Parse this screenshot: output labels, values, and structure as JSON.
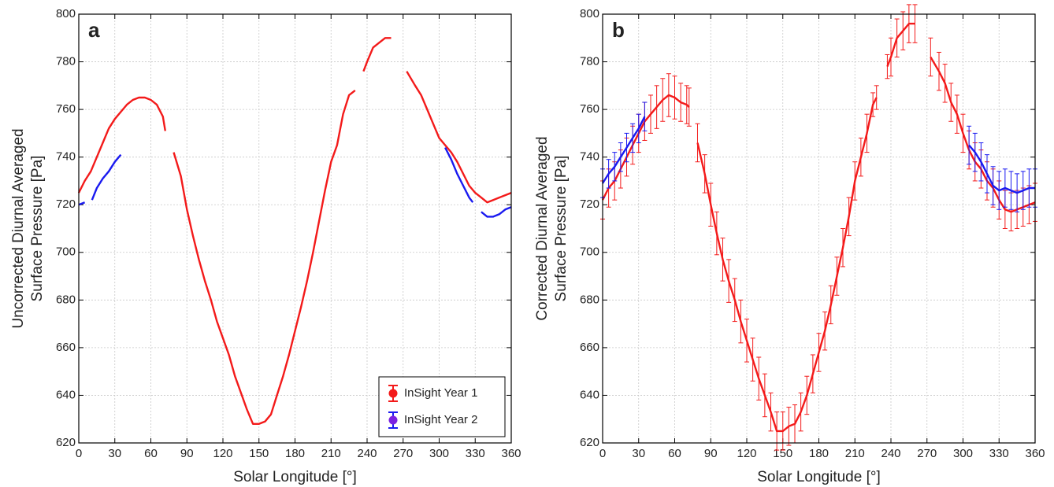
{
  "chart_data": [
    {
      "type": "line",
      "panel_label": "a",
      "xlabel": "Solar Longitude [°]",
      "ylabel": [
        "Uncorrected Diurnal Averaged",
        "Surface Pressure [Pa]"
      ],
      "xlim": [
        0,
        360
      ],
      "ylim": [
        620,
        800
      ],
      "xticks": [
        0,
        30,
        60,
        90,
        120,
        150,
        180,
        210,
        240,
        270,
        300,
        330,
        360
      ],
      "yticks": [
        620,
        640,
        660,
        680,
        700,
        720,
        740,
        760,
        780,
        800
      ],
      "grid": true,
      "legend": "lower right",
      "series": [
        {
          "name": "InSight Year 1",
          "color": "#f31a1a",
          "marker_color": "#f31a1a",
          "x": [
            0,
            5,
            10,
            15,
            20,
            25,
            30,
            35,
            40,
            45,
            50,
            55,
            60,
            65,
            70,
            72,
            75,
            79,
            85,
            90,
            95,
            100,
            105,
            110,
            115,
            120,
            125,
            130,
            135,
            140,
            145,
            150,
            155,
            160,
            165,
            170,
            175,
            180,
            185,
            190,
            195,
            200,
            205,
            210,
            215,
            220,
            225,
            230,
            233,
            237,
            240,
            245,
            250,
            255,
            260,
            266,
            273,
            280,
            285,
            290,
            295,
            300,
            305,
            310,
            315,
            320,
            325,
            330,
            335,
            340,
            345,
            350,
            355,
            360
          ],
          "values": [
            725,
            730,
            734,
            740,
            746,
            752,
            756,
            759,
            762,
            764,
            765,
            765,
            764,
            762,
            757,
            751,
            null,
            742,
            732,
            718,
            707,
            697,
            688,
            680,
            671,
            664,
            657,
            648,
            641,
            634,
            628,
            628,
            629,
            632,
            640,
            648,
            657,
            667,
            677,
            688,
            700,
            713,
            726,
            738,
            745,
            758,
            766,
            768,
            null,
            776,
            780,
            786,
            788,
            790,
            790,
            null,
            776,
            770,
            766,
            760,
            754,
            748,
            745,
            742,
            738,
            733,
            728,
            725,
            723,
            721,
            722,
            723,
            724,
            725
          ]
        },
        {
          "name": "InSight Year 2",
          "color": "#1a1af0",
          "marker_color": "#7b22e0",
          "x": [
            0,
            5,
            8,
            11,
            15,
            20,
            25,
            30,
            35,
            40,
            305,
            310,
            315,
            320,
            325,
            328,
            332,
            335,
            340,
            345,
            350,
            355,
            360
          ],
          "values": [
            720,
            721,
            null,
            722,
            727,
            731,
            734,
            738,
            741,
            null,
            744,
            739,
            733,
            728,
            723,
            721,
            null,
            717,
            715,
            715,
            716,
            718,
            719
          ]
        }
      ]
    },
    {
      "type": "line",
      "panel_label": "b",
      "xlabel": "Solar Longitude [°]",
      "ylabel": [
        "Corrected Diurnal Averaged",
        "Surface Pressure [Pa]"
      ],
      "xlim": [
        0,
        360
      ],
      "ylim": [
        620,
        800
      ],
      "xticks": [
        0,
        30,
        60,
        90,
        120,
        150,
        180,
        210,
        240,
        270,
        300,
        330,
        360
      ],
      "yticks": [
        620,
        640,
        660,
        680,
        700,
        720,
        740,
        760,
        780,
        800
      ],
      "grid": true,
      "series": [
        {
          "name": "InSight Year 1",
          "color": "#f31a1a",
          "x": [
            0,
            5,
            10,
            15,
            20,
            25,
            30,
            35,
            40,
            45,
            50,
            55,
            60,
            65,
            70,
            72,
            75,
            79,
            85,
            90,
            95,
            100,
            105,
            110,
            115,
            120,
            125,
            130,
            135,
            140,
            145,
            150,
            155,
            160,
            165,
            170,
            175,
            180,
            185,
            190,
            195,
            200,
            205,
            210,
            215,
            220,
            225,
            228,
            232,
            237,
            240,
            245,
            250,
            255,
            260,
            266,
            273,
            280,
            285,
            290,
            295,
            300,
            305,
            310,
            315,
            320,
            325,
            330,
            335,
            340,
            345,
            350,
            355,
            360
          ],
          "values": [
            722,
            727,
            730,
            735,
            740,
            745,
            750,
            755,
            758,
            761,
            764,
            766,
            765,
            763,
            762,
            761,
            null,
            746,
            733,
            720,
            708,
            697,
            688,
            680,
            671,
            663,
            655,
            647,
            640,
            633,
            625,
            625,
            627,
            628,
            633,
            640,
            649,
            658,
            667,
            678,
            690,
            702,
            715,
            730,
            740,
            750,
            762,
            765,
            null,
            778,
            782,
            790,
            793,
            796,
            796,
            null,
            782,
            776,
            771,
            763,
            758,
            750,
            743,
            738,
            735,
            730,
            727,
            722,
            718,
            717,
            718,
            719,
            720,
            721
          ],
          "errors": [
            8,
            8,
            8,
            8,
            8,
            8,
            8,
            8,
            8,
            9,
            9,
            9,
            9,
            8,
            8,
            8,
            null,
            8,
            8,
            9,
            9,
            9,
            9,
            9,
            9,
            9,
            9,
            9,
            9,
            8,
            8,
            8,
            8,
            8,
            8,
            8,
            8,
            8,
            8,
            8,
            8,
            8,
            8,
            8,
            8,
            8,
            5,
            5,
            null,
            5,
            8,
            8,
            8,
            8,
            8,
            null,
            8,
            8,
            8,
            8,
            8,
            8,
            8,
            8,
            8,
            8,
            8,
            8,
            8,
            8,
            8,
            8,
            8,
            8
          ]
        },
        {
          "name": "InSight Year 2",
          "color": "#1a1af0",
          "x": [
            0,
            5,
            10,
            15,
            20,
            25,
            30,
            35,
            40,
            305,
            310,
            315,
            320,
            325,
            330,
            335,
            340,
            345,
            350,
            355,
            360
          ],
          "values": [
            729,
            733,
            736,
            740,
            744,
            748,
            752,
            757,
            null,
            745,
            742,
            738,
            733,
            728,
            726,
            727,
            726,
            725,
            726,
            727,
            727
          ],
          "errors": [
            6,
            6,
            6,
            6,
            6,
            6,
            6,
            6,
            null,
            8,
            8,
            8,
            8,
            8,
            8,
            8,
            8,
            8,
            8,
            8,
            8
          ]
        }
      ]
    }
  ]
}
